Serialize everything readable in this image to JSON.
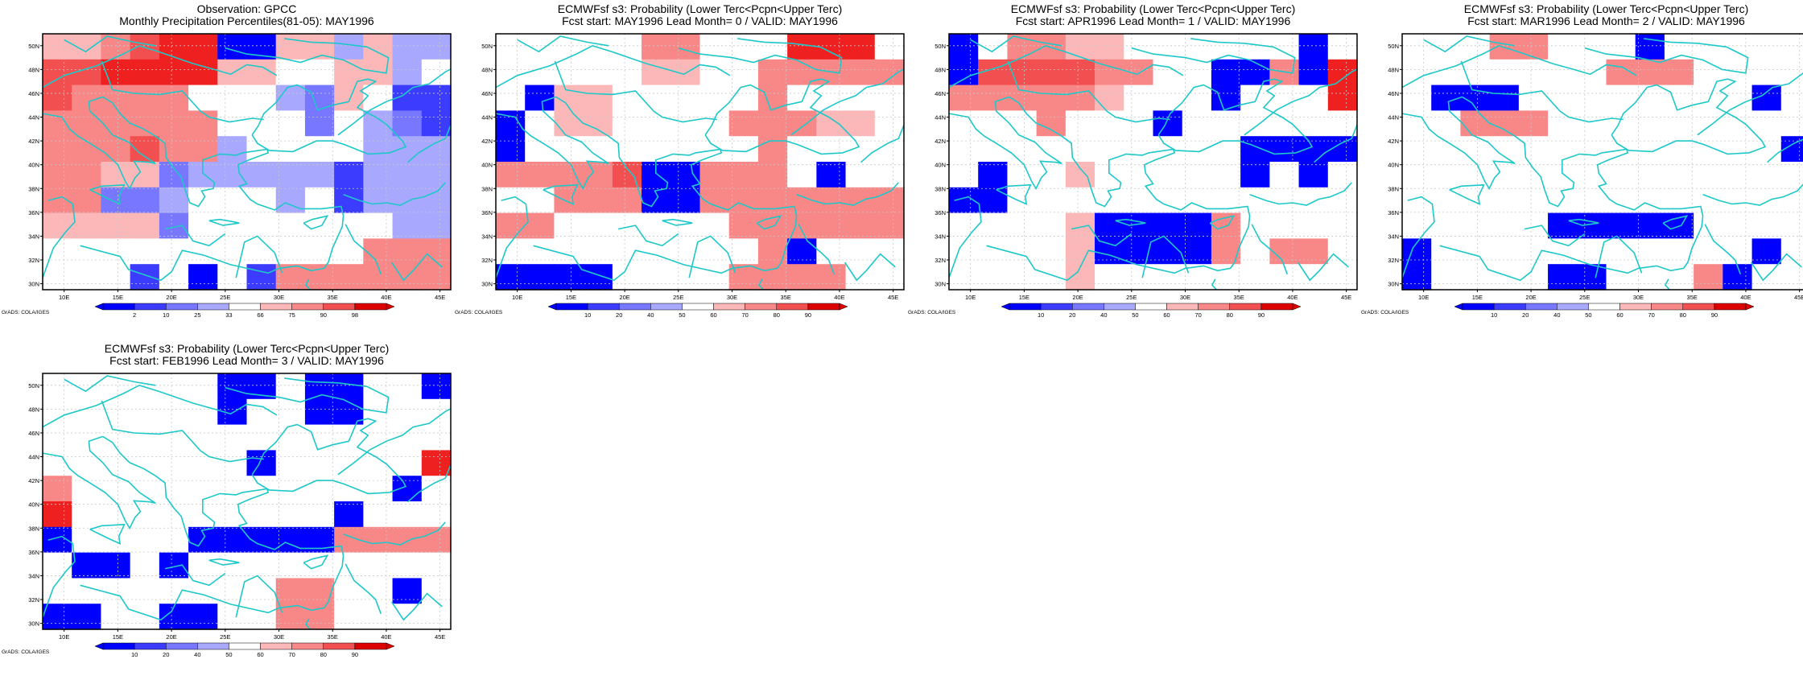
{
  "page_background": "#ffffff",
  "colors": {
    "coast": "#1ec8c8",
    "grid": "#c8c8c8",
    "frame": "#000000",
    "scale": [
      "#0000ff",
      "#3c3cff",
      "#7777ff",
      "#a8a8ff",
      "#ffffff",
      "#fcb8b8",
      "#f88888",
      "#f25050",
      "#ee2020",
      "#dc0000"
    ]
  },
  "credit": "GrADS: COLA/IGES",
  "panels": [
    {
      "id": "obs",
      "title_lines": [
        "Observation: GPCC",
        "Monthly Precipitation Percentiles(81-05): MAY1996"
      ],
      "cbar_labels": [
        "2",
        "10",
        "25",
        "33",
        "66",
        "75",
        "90",
        "98"
      ],
      "cells": [
        "55678800553533",
        "77888855445534",
        "76666444325411",
        "66666644424321",
        "66676634444333",
        "66552333331333",
        "66223444341333",
        "55552444444433",
        "44444444444666",
        "44414041666666"
      ]
    },
    {
      "id": "lead0",
      "title_lines": [
        "ECMWFsf s3: Probability (Lower Terc<Pcpn<Upper Terc)",
        "Fcst start: MAY1996  Lead Month= 0 / VALID: MAY1996"
      ],
      "cbar_labels": [
        "10",
        "20",
        "40",
        "50",
        "60",
        "70",
        "80",
        "90"
      ],
      "cells": [
        "44444664448884",
        "44444554466666",
        "40554444464444",
        "04554444666554",
        "04444444464444",
        "66667006664044",
        "44666006666666",
        "66444444666666",
        "44444444460444",
        "00004444666644"
      ]
    },
    {
      "id": "lead1",
      "title_lines": [
        "ECMWFsf s3: Probability (Lower Terc<Pcpn<Upper Terc)",
        "Fcst start: APR1996  Lead Month= 1 / VALID: MAY1996"
      ],
      "cbar_labels": [
        "10",
        "20",
        "40",
        "50",
        "60",
        "70",
        "80",
        "90"
      ],
      "cells": [
        "04665544444404",
        "07777664400608",
        "66666544404448",
        "44464440444444",
        "44444444440000",
        "40445444440404",
        "00444444444444",
        "44445000064444",
        "44445000064664",
        "44445444444444"
      ]
    },
    {
      "id": "lead2",
      "title_lines": [
        "ECMWFsf s3: Probability (Lower Terc<Pcpn<Upper Terc)",
        "Fcst start: MAR1996  Lead Month= 2 / VALID: MAY1996"
      ],
      "cbar_labels": [
        "10",
        "20",
        "40",
        "50",
        "60",
        "70",
        "80",
        "90"
      ],
      "cells": [
        "44466444044444",
        "44444446664444",
        "40004444444404",
        "44666444444444",
        "44444444444440",
        "44444444444444",
        "44444444444444",
        "44444000004444",
        "04444444444404",
        "04444004446044"
      ]
    },
    {
      "id": "lead3",
      "title_lines": [
        "ECMWFsf s3: Probability (Lower Terc<Pcpn<Upper Terc)",
        "Fcst start: FEB1996  Lead Month= 3 / VALID: MAY1996"
      ],
      "cbar_labels": [
        "10",
        "20",
        "40",
        "50",
        "60",
        "70",
        "80",
        "90"
      ],
      "cells": [
        "44444400400440",
        "44444404400444",
        "44444444444444",
        "44444440444448",
        "64444444444404",
        "84444444440444",
        "04444000006666",
        "40040444444444",
        "44444444664404",
        "00440044664444"
      ]
    }
  ]
}
